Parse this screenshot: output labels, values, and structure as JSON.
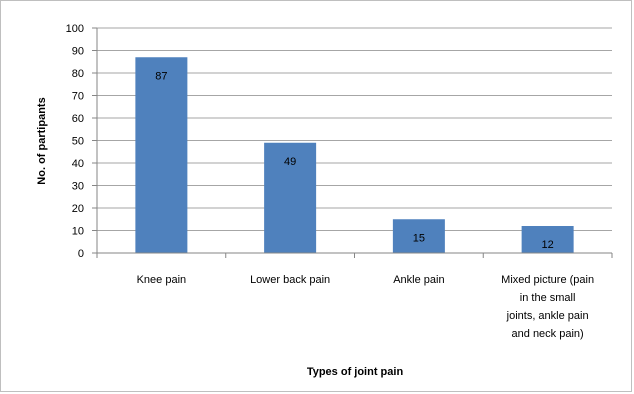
{
  "chart_data": {
    "type": "bar",
    "title": "",
    "xlabel": "Types of joint pain",
    "ylabel": "No. of partipants",
    "categories": [
      [
        "Knee pain"
      ],
      [
        "Lower back pain"
      ],
      [
        "Ankle pain"
      ],
      [
        "Mixed picture (pain",
        "in the small",
        "joints, ankle pain",
        "and neck pain)"
      ]
    ],
    "values": [
      87,
      49,
      15,
      12
    ],
    "data_labels": [
      "87",
      "49",
      "15",
      "12"
    ],
    "ylim": [
      0,
      100
    ],
    "yticks": [
      "0",
      "10",
      "20",
      "30",
      "40",
      "50",
      "60",
      "70",
      "80",
      "90",
      "100"
    ],
    "grid": true,
    "legend": "none",
    "bar_color": "#4f81bd",
    "grid_color": "#a6a6a6"
  }
}
